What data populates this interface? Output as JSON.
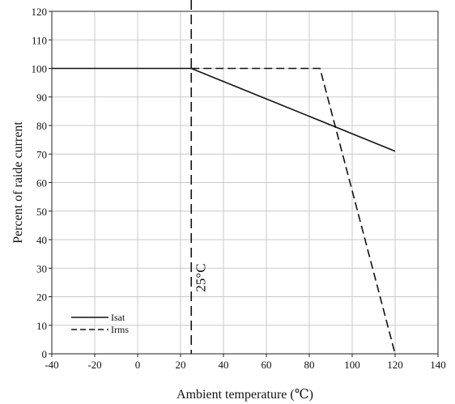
{
  "chart_data": {
    "type": "line",
    "title": "",
    "xlabel": "Ambient temperature (℃)",
    "ylabel": "Percent of raide current",
    "xlim": [
      -40,
      140
    ],
    "ylim": [
      0,
      120
    ],
    "xticks": [
      -40,
      -20,
      0,
      20,
      40,
      60,
      80,
      100,
      120,
      140
    ],
    "yticks": [
      0,
      10,
      20,
      30,
      40,
      50,
      60,
      70,
      80,
      90,
      100,
      110,
      120
    ],
    "grid": true,
    "legend_position": "bottom-left",
    "series": [
      {
        "name": "Isat",
        "style": "solid",
        "x": [
          -40,
          25,
          120
        ],
        "y": [
          100,
          100,
          71
        ]
      },
      {
        "name": "Irms",
        "style": "dashed",
        "x": [
          25,
          85,
          120
        ],
        "y": [
          100,
          100,
          0
        ]
      }
    ],
    "reference_lines": [
      {
        "axis": "x",
        "value": 25,
        "label": "25°C",
        "style": "dashed"
      }
    ],
    "colors": {
      "line": "#111111",
      "grid": "#c9c9c9"
    }
  }
}
